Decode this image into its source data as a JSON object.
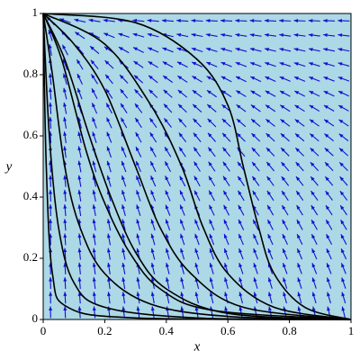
{
  "chart_data": {
    "type": "phase-portrait",
    "x_label": "x",
    "y_label": "y",
    "xlim": [
      0,
      1
    ],
    "ylim": [
      0,
      1
    ],
    "xticks": [
      0,
      0.2,
      0.4,
      0.6,
      0.8,
      1
    ],
    "yticks": [
      0,
      0.2,
      0.4,
      0.6,
      0.8,
      1
    ],
    "background": "#add8e6",
    "arrow_color": "#1010d0",
    "series": [
      {
        "color": "#000000",
        "x": [
          0,
          0.3,
          0.5,
          0.6,
          0.65,
          0.7,
          0.75,
          0.85,
          1
        ],
        "y": [
          1,
          0.97,
          0.85,
          0.7,
          0.5,
          0.3,
          0.15,
          0.04,
          0
        ]
      },
      {
        "color": "#000000",
        "x": [
          0,
          0.2,
          0.35,
          0.45,
          0.52,
          0.6,
          0.75,
          1
        ],
        "y": [
          1,
          0.9,
          0.7,
          0.5,
          0.3,
          0.15,
          0.04,
          0
        ]
      },
      {
        "color": "#000000",
        "x": [
          0,
          0.1,
          0.2,
          0.3,
          0.38,
          0.48,
          0.65,
          1
        ],
        "y": [
          1,
          0.9,
          0.75,
          0.5,
          0.3,
          0.15,
          0.04,
          0
        ]
      },
      {
        "color": "#000000",
        "x": [
          0,
          0.07,
          0.15,
          0.22,
          0.3,
          0.4,
          0.6,
          1
        ],
        "y": [
          1,
          0.85,
          0.6,
          0.4,
          0.22,
          0.1,
          0.02,
          0
        ]
      },
      {
        "color": "#000000",
        "x": [
          0,
          0.06,
          0.14,
          0.2,
          0.28,
          0.38,
          0.55,
          1
        ],
        "y": [
          1,
          0.85,
          0.55,
          0.38,
          0.22,
          0.1,
          0.03,
          0
        ]
      },
      {
        "color": "#000000",
        "x": [
          0,
          0.03,
          0.07,
          0.12,
          0.2,
          0.35,
          0.6,
          1
        ],
        "y": [
          1,
          0.8,
          0.5,
          0.3,
          0.15,
          0.05,
          0.01,
          0
        ]
      },
      {
        "color": "#000000",
        "x": [
          0,
          0.02,
          0.05,
          0.1,
          0.2,
          0.5,
          1
        ],
        "y": [
          1,
          0.6,
          0.3,
          0.12,
          0.04,
          0.005,
          0
        ]
      },
      {
        "color": "#000000",
        "x": [
          0,
          0.01,
          0.03,
          0.08,
          0.3,
          1
        ],
        "y": [
          1,
          0.5,
          0.15,
          0.04,
          0.005,
          0
        ]
      }
    ]
  }
}
